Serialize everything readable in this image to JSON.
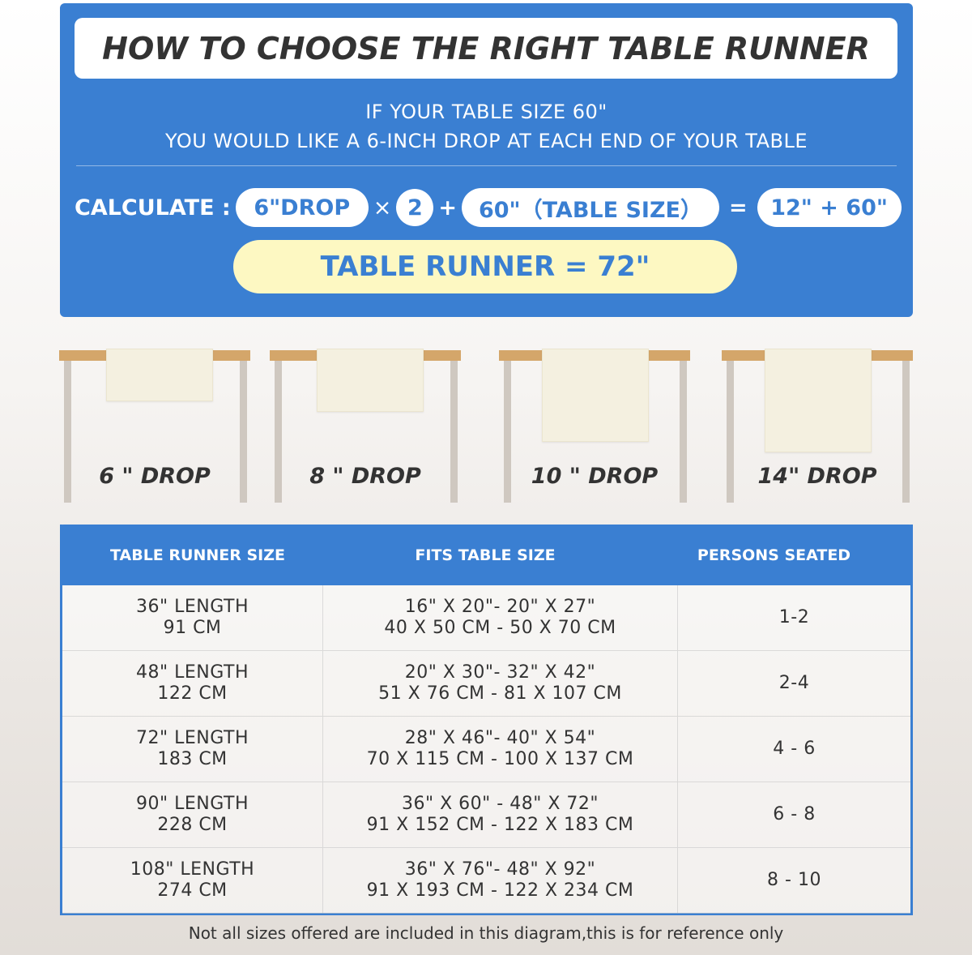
{
  "title": "HOW TO CHOOSE THE RIGHT TABLE RUNNER",
  "intro": [
    "IF YOUR TABLE SIZE 60\"",
    "YOU WOULD LIKE A 6-INCH DROP AT EACH END OF YOUR TABLE"
  ],
  "calc": {
    "label": "CALCULATE :",
    "drop": "6\"DROP",
    "times": "×",
    "factor": "2",
    "plus": "+",
    "table": "60\"（TABLE SIZE）",
    "equals": "=",
    "sum": "12\" + 60\"",
    "result": "TABLE RUNNER = 72\""
  },
  "drops": [
    "6 \" DROP",
    "8 \" DROP",
    "10 \" DROP",
    "14\" DROP"
  ],
  "colors": {
    "blue": "#3a7fd2",
    "wood": "#d4a66a",
    "runner": "#f4f0e0",
    "result_bg": "#fdf8c2"
  },
  "table": {
    "headers": [
      "TABLE RUNNER SIZE",
      "FITS TABLE SIZE",
      "PERSONS SEATED"
    ],
    "rows": [
      {
        "size": [
          "36\" LENGTH",
          "91 CM"
        ],
        "fits": [
          "16\" X 20\"- 20\" X 27\"",
          "40 X 50 CM - 50 X 70 CM"
        ],
        "persons": "1-2"
      },
      {
        "size": [
          "48\" LENGTH",
          "122 CM"
        ],
        "fits": [
          "20\" X 30\"- 32\" X 42\"",
          "51 X 76 CM - 81 X 107 CM"
        ],
        "persons": "2-4"
      },
      {
        "size": [
          "72\" LENGTH",
          "183 CM"
        ],
        "fits": [
          "28\" X 46\"- 40\" X 54\"",
          "70 X 115 CM - 100 X 137 CM"
        ],
        "persons": "4 - 6"
      },
      {
        "size": [
          "90\" LENGTH",
          "228 CM"
        ],
        "fits": [
          "36\" X 60\" - 48\" X 72\"",
          "91 X 152 CM - 122 X 183 CM"
        ],
        "persons": "6 - 8"
      },
      {
        "size": [
          "108\" LENGTH",
          "274 CM"
        ],
        "fits": [
          "36\" X 76\"- 48\" X 92\"",
          "91 X 193 CM - 122 X 234 CM"
        ],
        "persons": "8 - 10"
      }
    ]
  },
  "footer": "Not all sizes offered are included in this diagram,this is for reference only"
}
